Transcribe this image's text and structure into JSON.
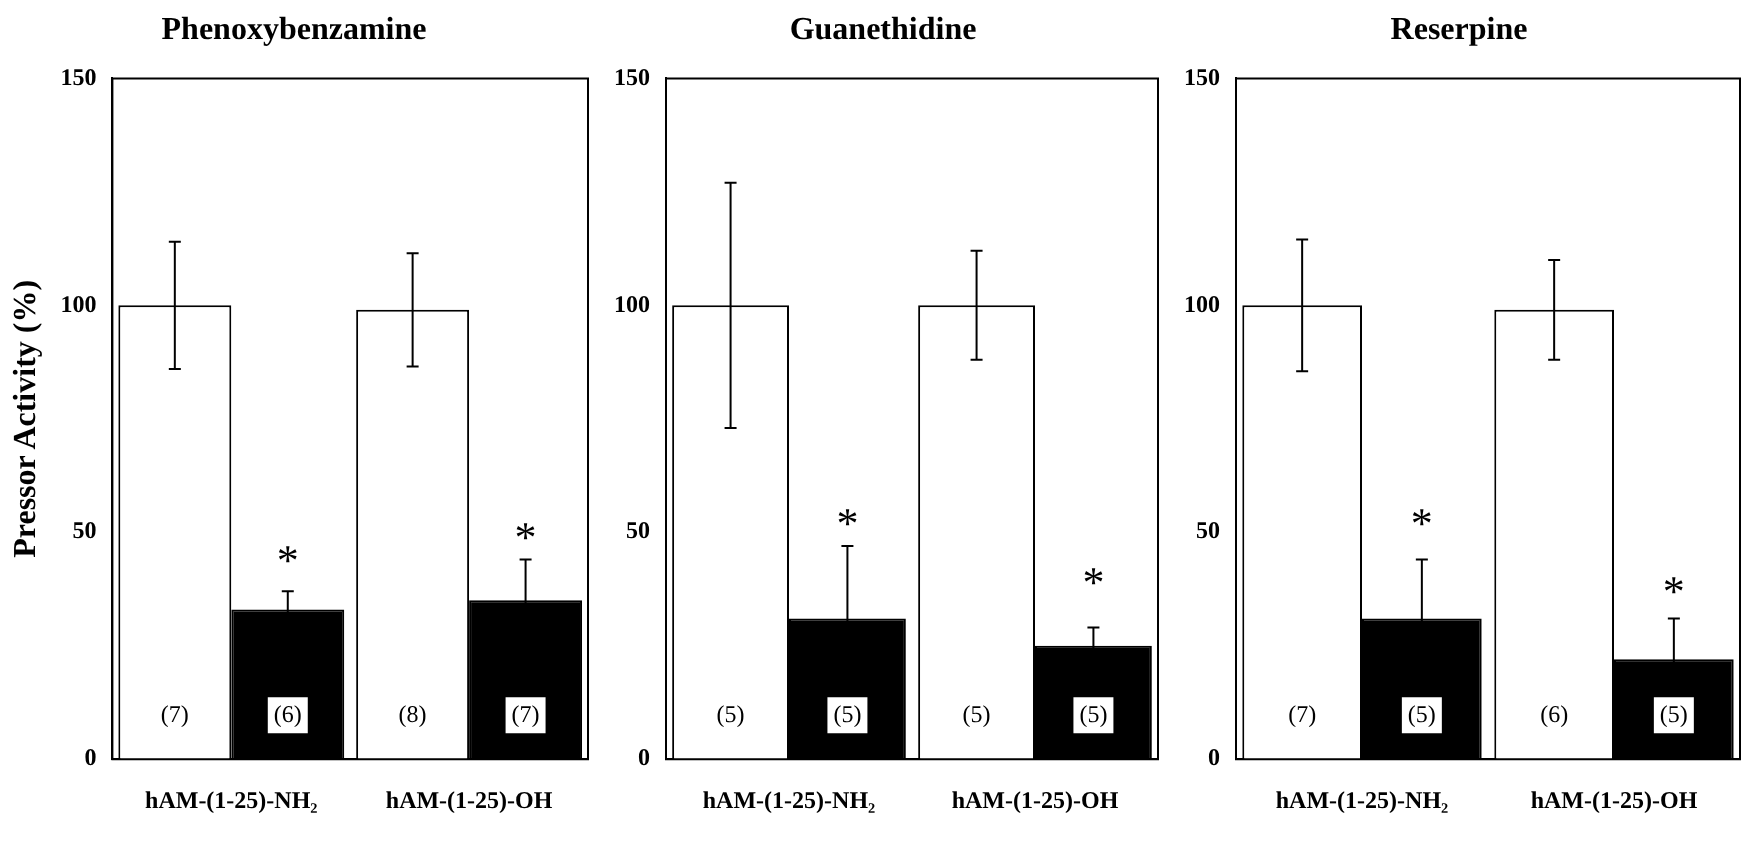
{
  "chart_data": [
    {
      "type": "bar",
      "title": "Phenoxybenzamine",
      "ylabel": "Pressor Activity (%)",
      "categories": [
        "hAM-(1-25)-NH₂",
        "hAM-(1-25)-OH"
      ],
      "series": [
        {
          "color": "#ffffff",
          "values": [
            100,
            99
          ],
          "errors": [
            14,
            12.5
          ]
        },
        {
          "color": "#000000",
          "values": [
            33,
            35
          ],
          "errors": [
            4,
            9
          ]
        }
      ],
      "ylim": [
        0,
        150
      ],
      "yticks": [
        0,
        50,
        100,
        150
      ],
      "grid": false,
      "legend": false,
      "annotations": [
        "(7)",
        "(6)",
        "(8)",
        "(7)",
        {
          "text": "*",
          "x": "hAM-(1-25)-NH₂",
          "y": 45
        },
        {
          "text": "*",
          "x": "hAM-(1-25)-OH",
          "y": 50
        }
      ]
    },
    {
      "type": "bar",
      "title": "Guanethidine",
      "categories": [
        "hAM-(1-25)-NH₂",
        "hAM-(1-25)-OH"
      ],
      "series": [
        {
          "color": "#ffffff",
          "values": [
            100,
            100
          ],
          "errors": [
            27,
            12
          ]
        },
        {
          "color": "#000000",
          "values": [
            31,
            25
          ],
          "errors": [
            16,
            4
          ]
        }
      ],
      "ylim": [
        0,
        150
      ],
      "yticks": [
        0,
        50,
        100,
        150
      ],
      "grid": false,
      "legend": false,
      "annotations": [
        "(5)",
        "(5)",
        "(5)",
        "(5)",
        {
          "text": "*",
          "x": "hAM-(1-25)-NH₂",
          "y": 53
        },
        {
          "text": "*",
          "x": "hAM-(1-25)-OH",
          "y": 40
        }
      ]
    },
    {
      "type": "bar",
      "title": "Reserpine",
      "categories": [
        "hAM-(1-25)-NH₂",
        "hAM-(1-25)-OH"
      ],
      "series": [
        {
          "color": "#ffffff",
          "values": [
            100,
            99
          ],
          "errors": [
            14.5,
            11
          ]
        },
        {
          "color": "#000000",
          "values": [
            31,
            22
          ],
          "errors": [
            13,
            9
          ]
        }
      ],
      "ylim": [
        0,
        150
      ],
      "yticks": [
        0,
        50,
        100,
        150
      ],
      "grid": false,
      "legend": false,
      "annotations": [
        "(7)",
        "(5)",
        "(6)",
        "(5)",
        {
          "text": "*",
          "x": "hAM-(1-25)-NH₂",
          "y": 53
        },
        {
          "text": "*",
          "x": "hAM-(1-25)-OH",
          "y": 38
        }
      ]
    }
  ]
}
